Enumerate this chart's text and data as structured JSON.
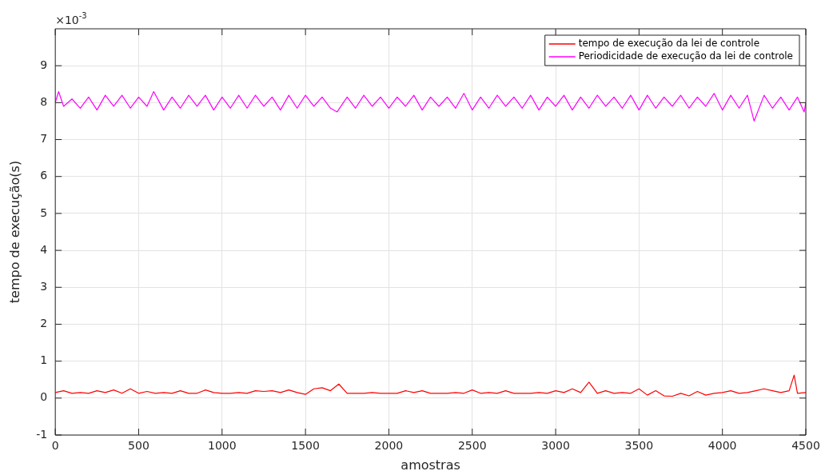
{
  "chart_data": {
    "type": "line",
    "xlabel": "amostras",
    "ylabel": "tempo de execução(s)",
    "annotations": [
      "×10$^{-3}$"
    ],
    "xlim": [
      0,
      4500
    ],
    "xticks": [
      0,
      500,
      1000,
      1500,
      2000,
      2500,
      3000,
      3500,
      4000,
      4500
    ],
    "ylim": [
      -1,
      10
    ],
    "yticks": [
      -1,
      0,
      1,
      2,
      3,
      4,
      5,
      6,
      7,
      8,
      9
    ],
    "grid": true,
    "legend": "top right",
    "marker": "none",
    "line_style": "solid",
    "series": [
      {
        "name": "tempo de execução da lei de controle",
        "color": "#ff0000",
        "x": [
          0,
          50,
          100,
          150,
          200,
          250,
          300,
          350,
          400,
          450,
          500,
          550,
          600,
          650,
          700,
          750,
          800,
          850,
          900,
          950,
          1000,
          1050,
          1100,
          1150,
          1200,
          1250,
          1300,
          1350,
          1400,
          1450,
          1500,
          1550,
          1600,
          1650,
          1700,
          1750,
          1800,
          1850,
          1900,
          1950,
          2000,
          2050,
          2100,
          2150,
          2200,
          2250,
          2300,
          2350,
          2400,
          2450,
          2500,
          2550,
          2600,
          2650,
          2700,
          2750,
          2800,
          2850,
          2900,
          2950,
          3000,
          3050,
          3100,
          3150,
          3200,
          3250,
          3300,
          3350,
          3400,
          3450,
          3500,
          3550,
          3600,
          3650,
          3700,
          3750,
          3800,
          3850,
          3900,
          3950,
          4000,
          4050,
          4100,
          4150,
          4200,
          4250,
          4300,
          4350,
          4400,
          4430,
          4450,
          4500
        ],
        "values": [
          0.15,
          0.2,
          0.13,
          0.15,
          0.13,
          0.2,
          0.15,
          0.22,
          0.13,
          0.25,
          0.13,
          0.18,
          0.13,
          0.15,
          0.13,
          0.2,
          0.13,
          0.13,
          0.22,
          0.15,
          0.13,
          0.13,
          0.15,
          0.13,
          0.2,
          0.18,
          0.2,
          0.15,
          0.22,
          0.15,
          0.1,
          0.25,
          0.28,
          0.2,
          0.38,
          0.13,
          0.13,
          0.13,
          0.15,
          0.13,
          0.13,
          0.13,
          0.2,
          0.15,
          0.2,
          0.13,
          0.13,
          0.13,
          0.15,
          0.13,
          0.22,
          0.13,
          0.15,
          0.13,
          0.2,
          0.13,
          0.13,
          0.13,
          0.15,
          0.13,
          0.2,
          0.15,
          0.25,
          0.15,
          0.43,
          0.13,
          0.2,
          0.13,
          0.15,
          0.13,
          0.25,
          0.08,
          0.2,
          0.06,
          0.05,
          0.13,
          0.06,
          0.18,
          0.08,
          0.13,
          0.15,
          0.2,
          0.13,
          0.15,
          0.2,
          0.25,
          0.2,
          0.15,
          0.2,
          0.62,
          0.13,
          0.15
        ]
      },
      {
        "name": "Periodicidade de execução da lei de controle",
        "color": "#ff00ff",
        "x": [
          0,
          20,
          50,
          100,
          150,
          200,
          250,
          300,
          350,
          400,
          450,
          500,
          550,
          590,
          650,
          700,
          750,
          800,
          850,
          900,
          950,
          1000,
          1050,
          1100,
          1150,
          1200,
          1250,
          1300,
          1350,
          1400,
          1450,
          1500,
          1550,
          1600,
          1650,
          1690,
          1750,
          1800,
          1850,
          1900,
          1950,
          2000,
          2050,
          2100,
          2150,
          2200,
          2250,
          2300,
          2350,
          2400,
          2450,
          2500,
          2550,
          2600,
          2650,
          2700,
          2750,
          2800,
          2850,
          2900,
          2950,
          3000,
          3050,
          3100,
          3150,
          3200,
          3250,
          3300,
          3350,
          3400,
          3450,
          3500,
          3550,
          3600,
          3650,
          3700,
          3750,
          3800,
          3850,
          3900,
          3950,
          4000,
          4050,
          4100,
          4150,
          4190,
          4250,
          4300,
          4350,
          4400,
          4450,
          4490,
          4500
        ],
        "values": [
          8.0,
          8.3,
          7.9,
          8.1,
          7.85,
          8.15,
          7.8,
          8.2,
          7.9,
          8.2,
          7.85,
          8.15,
          7.9,
          8.3,
          7.8,
          8.15,
          7.85,
          8.2,
          7.9,
          8.2,
          7.8,
          8.15,
          7.85,
          8.2,
          7.85,
          8.2,
          7.9,
          8.15,
          7.8,
          8.2,
          7.85,
          8.2,
          7.9,
          8.15,
          7.85,
          7.75,
          8.15,
          7.85,
          8.2,
          7.9,
          8.15,
          7.85,
          8.15,
          7.9,
          8.2,
          7.8,
          8.15,
          7.9,
          8.15,
          7.85,
          8.25,
          7.8,
          8.15,
          7.85,
          8.2,
          7.9,
          8.15,
          7.85,
          8.2,
          7.8,
          8.15,
          7.9,
          8.2,
          7.8,
          8.15,
          7.85,
          8.2,
          7.9,
          8.15,
          7.85,
          8.2,
          7.8,
          8.2,
          7.85,
          8.15,
          7.9,
          8.2,
          7.85,
          8.15,
          7.9,
          8.25,
          7.8,
          8.2,
          7.85,
          8.2,
          7.5,
          8.2,
          7.85,
          8.15,
          7.8,
          8.15,
          7.75,
          8.0
        ]
      }
    ]
  }
}
